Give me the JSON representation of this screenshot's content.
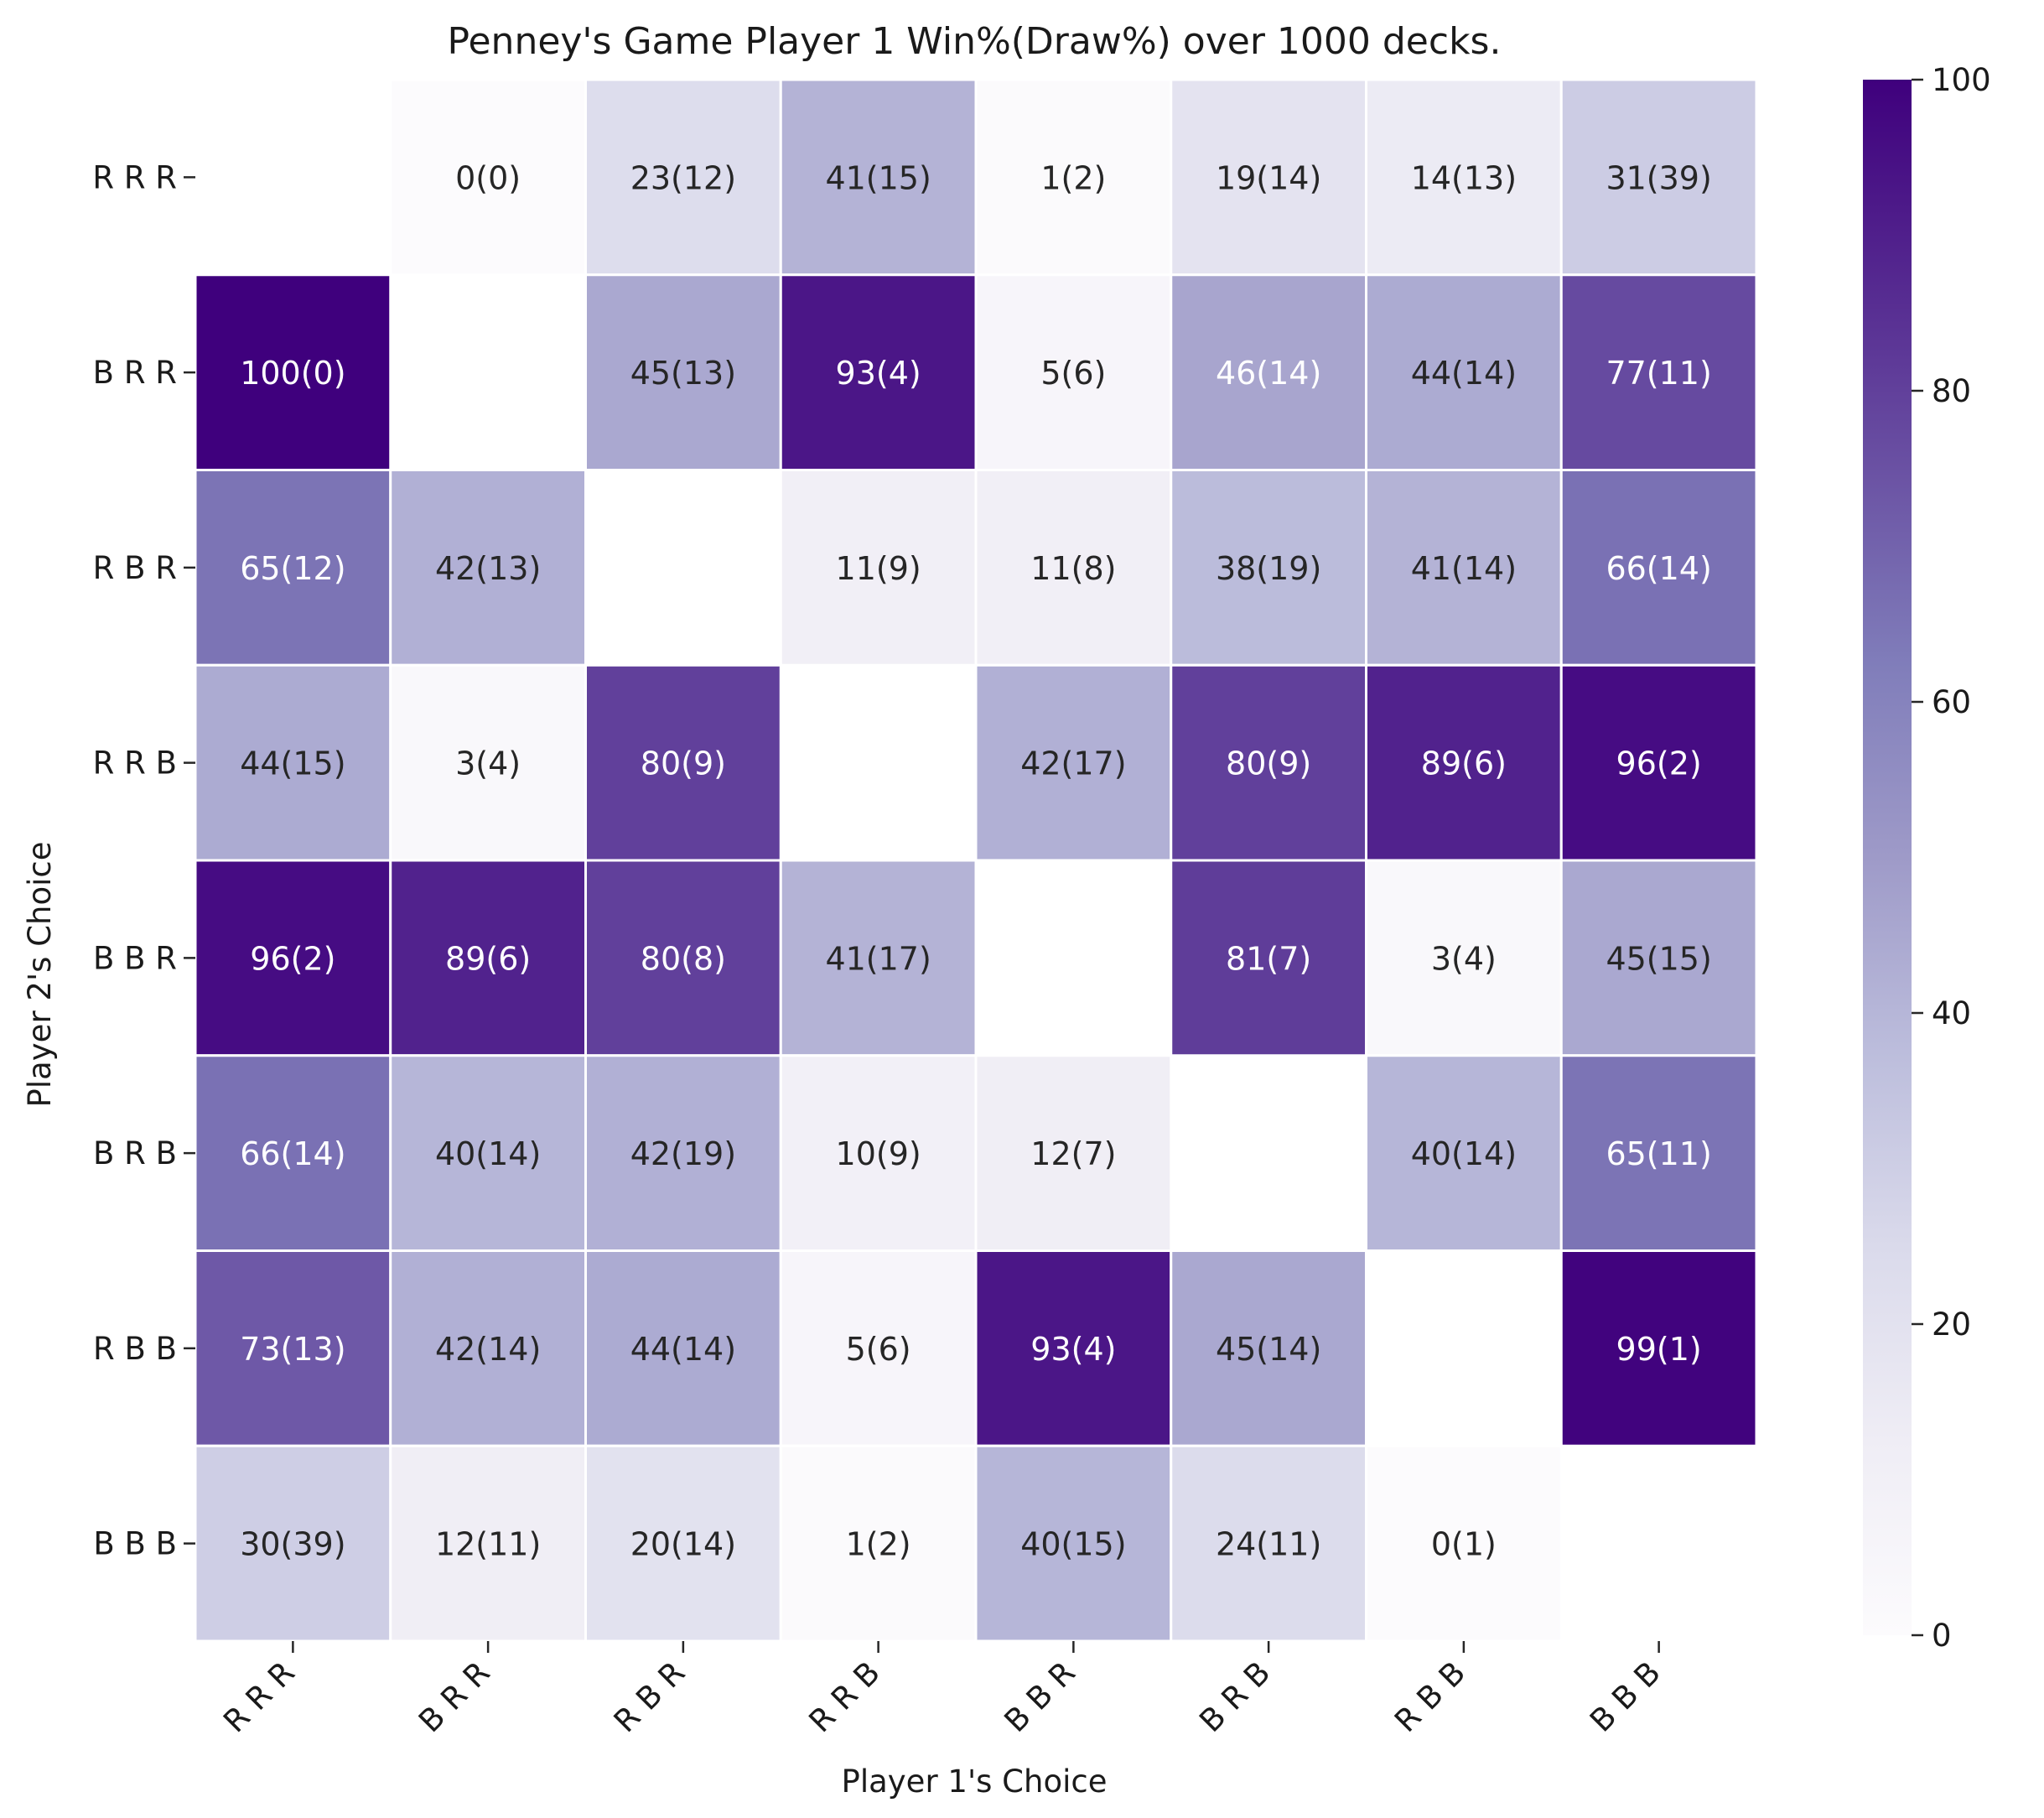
{
  "chart_data": {
    "type": "heatmap",
    "title": "Penney's Game Player 1 Win%(Draw%) over 1000 decks.",
    "xlabel": "Player 1's Choice",
    "ylabel": "Player 2's Choice",
    "x_categories": [
      "R R R",
      "B R R",
      "R B R",
      "R R B",
      "B B R",
      "B R B",
      "R B B",
      "B B B"
    ],
    "y_categories": [
      "R R R",
      "B R R",
      "R B R",
      "R R B",
      "B B R",
      "B R B",
      "R B B",
      "B B B"
    ],
    "win": [
      [
        null,
        0,
        23,
        41,
        1,
        19,
        14,
        31
      ],
      [
        100,
        null,
        45,
        93,
        5,
        46,
        44,
        77
      ],
      [
        65,
        42,
        null,
        11,
        11,
        38,
        41,
        66
      ],
      [
        44,
        3,
        80,
        null,
        42,
        80,
        89,
        96
      ],
      [
        96,
        89,
        80,
        41,
        null,
        81,
        3,
        45
      ],
      [
        66,
        40,
        42,
        10,
        12,
        null,
        40,
        65
      ],
      [
        73,
        42,
        44,
        5,
        93,
        45,
        null,
        99
      ],
      [
        30,
        12,
        20,
        1,
        40,
        24,
        0,
        null
      ]
    ],
    "draw": [
      [
        null,
        0,
        12,
        15,
        2,
        14,
        13,
        39
      ],
      [
        0,
        null,
        13,
        4,
        6,
        14,
        14,
        11
      ],
      [
        12,
        13,
        null,
        9,
        8,
        19,
        14,
        14
      ],
      [
        15,
        4,
        9,
        null,
        17,
        9,
        6,
        2
      ],
      [
        2,
        6,
        8,
        17,
        null,
        7,
        4,
        15
      ],
      [
        14,
        14,
        19,
        9,
        7,
        null,
        14,
        11
      ],
      [
        13,
        14,
        14,
        6,
        4,
        14,
        null,
        1
      ],
      [
        39,
        11,
        14,
        2,
        15,
        11,
        1,
        null
      ]
    ],
    "colorbar": {
      "range": [
        0,
        100
      ],
      "ticks": [
        "0",
        "20",
        "40",
        "60",
        "80",
        "100"
      ],
      "colormap": "Purples"
    }
  }
}
